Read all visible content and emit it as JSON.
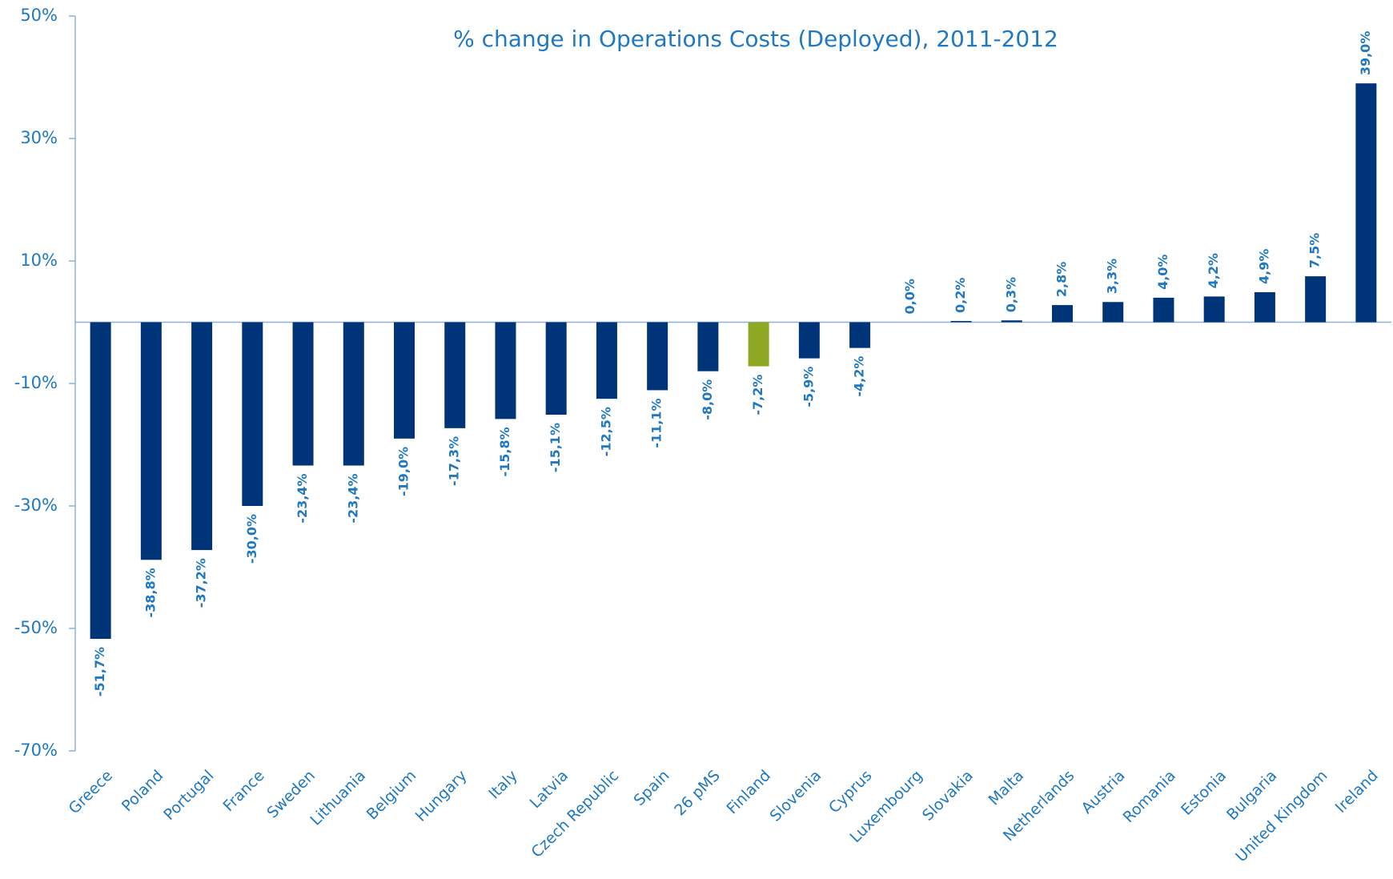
{
  "chart_data": {
    "type": "bar",
    "title": "% change in Operations Costs (Deployed), 2011-2012",
    "categories": [
      "Greece",
      "Poland",
      "Portugal",
      "France",
      "Sweden",
      "Lithuania",
      "Belgium",
      "Hungary",
      "Italy",
      "Latvia",
      "Czech Republic",
      "Spain",
      "26 pMS",
      "Finland",
      "Slovenia",
      "Cyprus",
      "Luxembourg",
      "Slovakia",
      "Malta",
      "Netherlands",
      "Austria",
      "Romania",
      "Estonia",
      "Bulgaria",
      "United Kingdom",
      "Ireland"
    ],
    "values": [
      -51.7,
      -38.8,
      -37.2,
      -30.0,
      -23.4,
      -23.4,
      -19.0,
      -17.3,
      -15.8,
      -15.1,
      -12.5,
      -11.1,
      -8.0,
      -7.2,
      -5.9,
      -4.2,
      0.0,
      0.2,
      0.3,
      2.8,
      3.3,
      4.0,
      4.2,
      4.9,
      7.5,
      39.0
    ],
    "value_labels": [
      "-51,7%",
      "-38,8%",
      "-37,2%",
      "-30,0%",
      "-23,4%",
      "-23,4%",
      "-19,0%",
      "-17,3%",
      "-15,8%",
      "-15,1%",
      "-12,5%",
      "-11,1%",
      "-8,0%",
      "-7,2%",
      "-5,9%",
      "-4,2%",
      "0,0%",
      "0,2%",
      "0,3%",
      "2,8%",
      "3,3%",
      "4,0%",
      "4,2%",
      "4,9%",
      "7,5%",
      "39,0%"
    ],
    "colors": [
      "#003478",
      "#003478",
      "#003478",
      "#003478",
      "#003478",
      "#003478",
      "#003478",
      "#003478",
      "#003478",
      "#003478",
      "#003478",
      "#003478",
      "#003478",
      "#8fa823",
      "#003478",
      "#003478",
      "#003478",
      "#003478",
      "#003478",
      "#003478",
      "#003478",
      "#003478",
      "#003478",
      "#003478",
      "#003478",
      "#003478"
    ],
    "ylim": [
      -70,
      50
    ],
    "yticks": [
      {
        "value": -70,
        "label": "-70%"
      },
      {
        "value": -50,
        "label": "-50%"
      },
      {
        "value": -30,
        "label": "-30%"
      },
      {
        "value": -10,
        "label": "-10%"
      },
      {
        "value": 10,
        "label": "10%"
      },
      {
        "value": 30,
        "label": "30%"
      },
      {
        "value": 50,
        "label": "50%"
      }
    ],
    "grid": false
  }
}
